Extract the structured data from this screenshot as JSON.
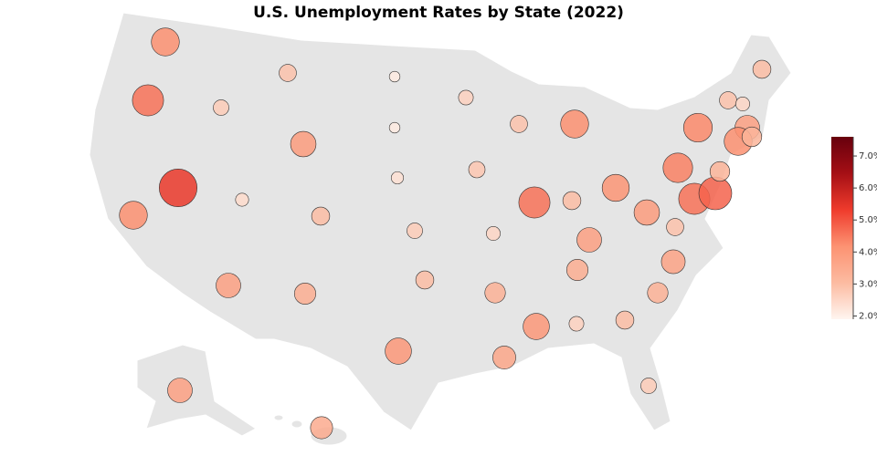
{
  "chart_data": {
    "type": "bubble-map",
    "title": "U.S. Unemployment Rates by State (2022)",
    "values": [
      4.2,
      4.6,
      2.7,
      2.9,
      2.1,
      2.1,
      3.9,
      5.4,
      2.4,
      4.2,
      3.0,
      3.8,
      3.4,
      2.3,
      2.7,
      3.0,
      4.0,
      2.6,
      2.8,
      2.5,
      3.3,
      3.6,
      2.9,
      4.6,
      4.0,
      4.2,
      3.0,
      3.8,
      3.4,
      2.6,
      4.1,
      3.0,
      2.7,
      3.9,
      2.9,
      3.7,
      3.3,
      4.4,
      4.3,
      4.6,
      4.8,
      3.2,
      2.9,
      2.5,
      3.0,
      3.8,
      4.2,
      3.2,
      3.8,
      3.5
    ],
    "clim": [
      1.9,
      7.6
    ],
    "colorbar_ticks": [
      {
        "value": 2,
        "label": "2.0%"
      },
      {
        "value": 3,
        "label": "3.0%"
      },
      {
        "value": 4,
        "label": "4.0%"
      },
      {
        "value": 5,
        "label": "5.0%"
      },
      {
        "value": 6,
        "label": "6.0%"
      },
      {
        "value": 7,
        "label": "7.0%"
      }
    ],
    "colorscale": [
      "#fff5f0",
      "#fcbba1",
      "#fc9272",
      "#ef3b2c",
      "#a50f15",
      "#67000d"
    ]
  }
}
